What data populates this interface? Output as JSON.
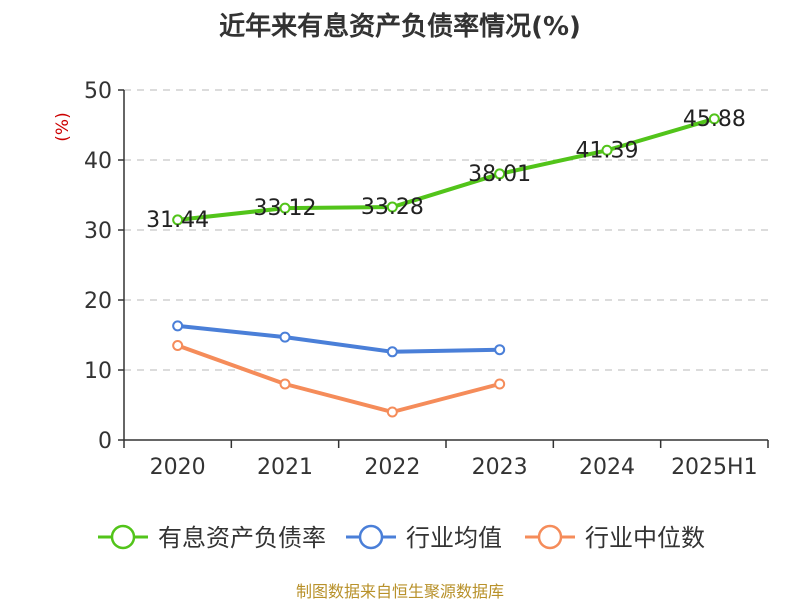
{
  "chart_data": {
    "type": "line",
    "title": "近年来有息资产负债率情况(%)",
    "ylabel": "(%)",
    "categories": [
      "2020",
      "2021",
      "2022",
      "2023",
      "2024",
      "2025H1"
    ],
    "ylim": [
      0,
      50
    ],
    "yticks": [
      0,
      10,
      20,
      30,
      40,
      50
    ],
    "grid": true,
    "legend_position": "bottom",
    "series": [
      {
        "name": "有息资产负债率",
        "color": "#52c41a",
        "values": [
          31.44,
          33.12,
          33.28,
          38.01,
          41.39,
          45.88
        ],
        "data_labels": [
          "31.44",
          "33.12",
          "33.28",
          "38.01",
          "41.39",
          "45.88"
        ]
      },
      {
        "name": "行业均值",
        "color": "#4a7fd8",
        "values": [
          16.3,
          14.7,
          12.6,
          12.9,
          null,
          null
        ]
      },
      {
        "name": "行业中位数",
        "color": "#f58c5a",
        "values": [
          13.5,
          8.0,
          4.0,
          8.0,
          null,
          null
        ]
      }
    ]
  },
  "source": "制图数据来自恒生聚源数据库"
}
